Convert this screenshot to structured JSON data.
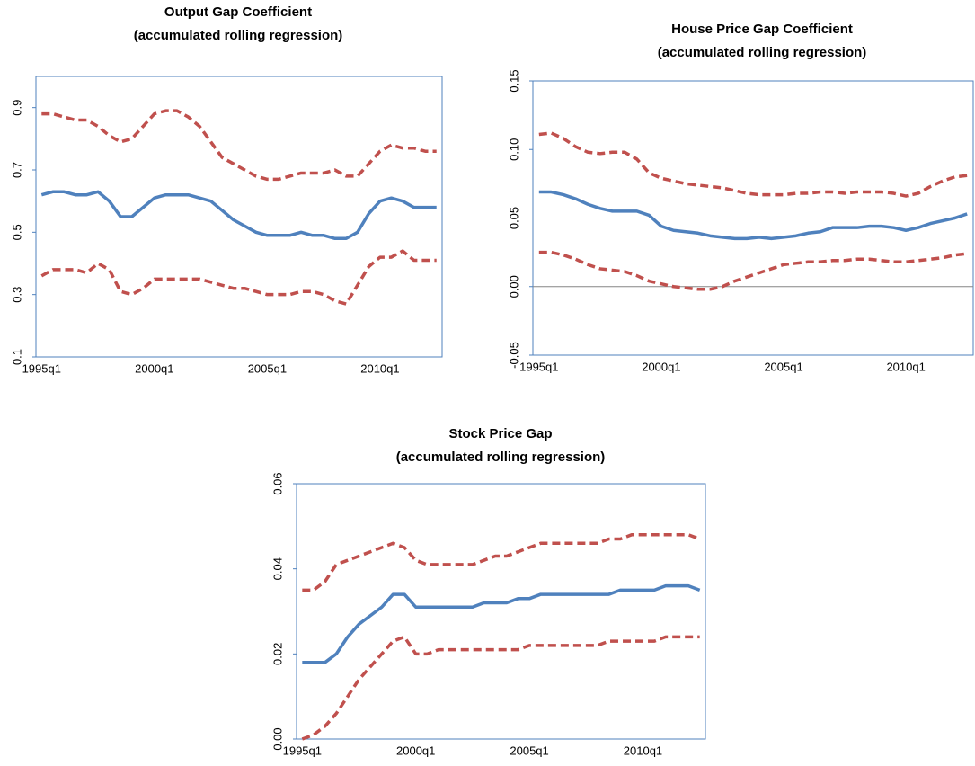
{
  "chart_data": [
    {
      "type": "line",
      "title": "Output Gap Coefficient",
      "subtitle": "(accumulated rolling regression)",
      "categories": [
        "1995q1",
        null,
        null,
        null,
        null,
        null,
        null,
        null,
        null,
        null,
        "2000q1",
        null,
        null,
        null,
        null,
        null,
        null,
        null,
        null,
        null,
        "2005q1",
        null,
        null,
        null,
        null,
        null,
        null,
        null,
        null,
        null,
        "2010q1",
        null,
        null,
        null,
        null,
        null
      ],
      "series": [
        {
          "color": "#4f81bd",
          "dashed": false,
          "values": [
            0.62,
            0.63,
            0.63,
            0.62,
            0.62,
            0.63,
            0.6,
            0.55,
            0.55,
            0.58,
            0.61,
            0.62,
            0.62,
            0.62,
            0.61,
            0.6,
            0.57,
            0.54,
            0.52,
            0.5,
            0.49,
            0.49,
            0.49,
            0.5,
            0.49,
            0.49,
            0.48,
            0.48,
            0.5,
            0.56,
            0.6,
            0.61,
            0.6,
            0.58,
            0.58,
            0.58
          ]
        },
        {
          "color": "#c0504d",
          "dashed": true,
          "values": [
            0.88,
            0.88,
            0.87,
            0.86,
            0.86,
            0.84,
            0.81,
            0.79,
            0.8,
            0.84,
            0.88,
            0.89,
            0.89,
            0.87,
            0.84,
            0.79,
            0.74,
            0.72,
            0.7,
            0.68,
            0.67,
            0.67,
            0.68,
            0.69,
            0.69,
            0.69,
            0.7,
            0.68,
            0.68,
            0.72,
            0.76,
            0.78,
            0.77,
            0.77,
            0.76,
            0.76
          ]
        },
        {
          "color": "#c0504d",
          "dashed": true,
          "values": [
            0.36,
            0.38,
            0.38,
            0.38,
            0.37,
            0.4,
            0.38,
            0.31,
            0.3,
            0.32,
            0.35,
            0.35,
            0.35,
            0.35,
            0.35,
            0.34,
            0.33,
            0.32,
            0.32,
            0.31,
            0.3,
            0.3,
            0.3,
            0.31,
            0.31,
            0.3,
            0.28,
            0.27,
            0.33,
            0.39,
            0.42,
            0.42,
            0.44,
            0.41,
            0.41,
            0.41
          ]
        }
      ],
      "ylim": [
        0.1,
        1.0
      ],
      "yticks": [
        0.1,
        0.3,
        0.5,
        0.7,
        0.9
      ],
      "grid": false
    },
    {
      "type": "line",
      "title": "House Price Gap Coefficient",
      "subtitle": "(accumulated rolling regression)",
      "categories": [
        "1995q1",
        null,
        null,
        null,
        null,
        null,
        null,
        null,
        null,
        null,
        "2000q1",
        null,
        null,
        null,
        null,
        null,
        null,
        null,
        null,
        null,
        "2005q1",
        null,
        null,
        null,
        null,
        null,
        null,
        null,
        null,
        null,
        "2010q1",
        null,
        null,
        null,
        null,
        null
      ],
      "series": [
        {
          "color": "#4f81bd",
          "dashed": false,
          "values": [
            0.069,
            0.069,
            0.067,
            0.064,
            0.06,
            0.057,
            0.055,
            0.055,
            0.055,
            0.052,
            0.044,
            0.041,
            0.04,
            0.039,
            0.037,
            0.036,
            0.035,
            0.035,
            0.036,
            0.035,
            0.036,
            0.037,
            0.039,
            0.04,
            0.043,
            0.043,
            0.043,
            0.044,
            0.044,
            0.043,
            0.041,
            0.043,
            0.046,
            0.048,
            0.05,
            0.053
          ]
        },
        {
          "color": "#c0504d",
          "dashed": true,
          "values": [
            0.111,
            0.112,
            0.108,
            0.102,
            0.098,
            0.097,
            0.098,
            0.098,
            0.093,
            0.083,
            0.079,
            0.077,
            0.075,
            0.074,
            0.073,
            0.072,
            0.07,
            0.068,
            0.067,
            0.067,
            0.067,
            0.068,
            0.068,
            0.069,
            0.069,
            0.068,
            0.069,
            0.069,
            0.069,
            0.068,
            0.066,
            0.068,
            0.073,
            0.077,
            0.08,
            0.081
          ]
        },
        {
          "color": "#c0504d",
          "dashed": true,
          "values": [
            0.025,
            0.025,
            0.023,
            0.02,
            0.016,
            0.013,
            0.012,
            0.011,
            0.008,
            0.004,
            0.002,
            0.0,
            -0.001,
            -0.002,
            -0.002,
            0.0,
            0.004,
            0.007,
            0.01,
            0.013,
            0.016,
            0.017,
            0.018,
            0.018,
            0.019,
            0.019,
            0.02,
            0.02,
            0.019,
            0.018,
            0.018,
            0.019,
            0.02,
            0.021,
            0.023,
            0.024
          ]
        }
      ],
      "ylim": [
        -0.05,
        0.15
      ],
      "yticks": [
        -0.05,
        {
          "value": 0,
          "label": "0.00"
        },
        0.05,
        {
          "value": 0.1,
          "label": "0.10"
        },
        0.15
      ],
      "grid": false
    },
    {
      "type": "line",
      "title": "Stock Price Gap",
      "subtitle": "(accumulated rolling regression)",
      "categories": [
        "1995q1",
        null,
        null,
        null,
        null,
        null,
        null,
        null,
        null,
        null,
        "2000q1",
        null,
        null,
        null,
        null,
        null,
        null,
        null,
        null,
        null,
        "2005q1",
        null,
        null,
        null,
        null,
        null,
        null,
        null,
        null,
        null,
        "2010q1",
        null,
        null,
        null,
        null,
        null
      ],
      "series": [
        {
          "color": "#4f81bd",
          "dashed": false,
          "values": [
            0.018,
            0.018,
            0.018,
            0.02,
            0.024,
            0.027,
            0.029,
            0.031,
            0.034,
            0.034,
            0.031,
            0.031,
            0.031,
            0.031,
            0.031,
            0.031,
            0.032,
            0.032,
            0.032,
            0.033,
            0.033,
            0.034,
            0.034,
            0.034,
            0.034,
            0.034,
            0.034,
            0.034,
            0.035,
            0.035,
            0.035,
            0.035,
            0.036,
            0.036,
            0.036,
            0.035
          ]
        },
        {
          "color": "#c0504d",
          "dashed": true,
          "values": [
            0.035,
            0.035,
            0.037,
            0.041,
            0.042,
            0.043,
            0.044,
            0.045,
            0.046,
            0.045,
            0.042,
            0.041,
            0.041,
            0.041,
            0.041,
            0.041,
            0.042,
            0.043,
            0.043,
            0.044,
            0.045,
            0.046,
            0.046,
            0.046,
            0.046,
            0.046,
            0.046,
            0.047,
            0.047,
            0.048,
            0.048,
            0.048,
            0.048,
            0.048,
            0.048,
            0.047
          ]
        },
        {
          "color": "#c0504d",
          "dashed": true,
          "values": [
            0.0,
            0.001,
            0.003,
            0.006,
            0.01,
            0.014,
            0.017,
            0.02,
            0.023,
            0.024,
            0.02,
            0.02,
            0.021,
            0.021,
            0.021,
            0.021,
            0.021,
            0.021,
            0.021,
            0.021,
            0.022,
            0.022,
            0.022,
            0.022,
            0.022,
            0.022,
            0.022,
            0.023,
            0.023,
            0.023,
            0.023,
            0.023,
            0.024,
            0.024,
            0.024,
            0.024
          ]
        }
      ],
      "ylim": [
        0,
        0.06
      ],
      "yticks": [
        {
          "value": 0,
          "label": "0.00"
        },
        0.02,
        0.04,
        0.06
      ],
      "grid": false
    }
  ]
}
